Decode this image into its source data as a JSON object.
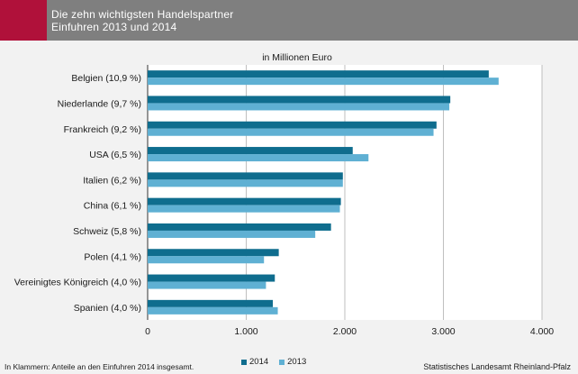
{
  "header": {
    "title_line1": "Die zehn wichtigsten Handelspartner",
    "title_line2": "Einfuhren 2013 und 2014"
  },
  "unit_label": "in Millionen Euro",
  "footnote": "In Klammern: Anteile an den Einfuhren 2014 insgesamt.",
  "source": "Statistisches Landesamt Rheinland-Pfalz",
  "colors": {
    "series_2014": "#0f6d8e",
    "series_2013": "#5fb0d3",
    "header_bg": "#7f7f7f",
    "accent": "#b0113a",
    "background": "#f2f2f2",
    "plot_bg": "#ffffff"
  },
  "chart_data": {
    "type": "bar",
    "orientation": "horizontal",
    "categories": [
      "Belgien (10,9 %)",
      "Niederlande (9,7 %)",
      "Frankreich (9,2 %)",
      "USA (6,5 %)",
      "Italien (6,2 %)",
      "China (6,1 %)",
      "Schweiz (5,8 %)",
      "Polen (4,1 %)",
      "Vereinigtes Königreich (4,0 %)",
      "Spanien (4,0 %)"
    ],
    "series": [
      {
        "name": "2014",
        "values": [
          3460,
          3070,
          2930,
          2080,
          1980,
          1960,
          1860,
          1330,
          1290,
          1270
        ]
      },
      {
        "name": "2013",
        "values": [
          3560,
          3060,
          2900,
          2240,
          1980,
          1950,
          1700,
          1180,
          1200,
          1320
        ]
      }
    ],
    "xlim": [
      0,
      4000
    ],
    "xticks": [
      0,
      1000,
      2000,
      3000,
      4000
    ],
    "xtick_labels": [
      "0",
      "1.000",
      "2.000",
      "3.000",
      "4.000"
    ],
    "grid": true,
    "legend_position": "bottom"
  }
}
